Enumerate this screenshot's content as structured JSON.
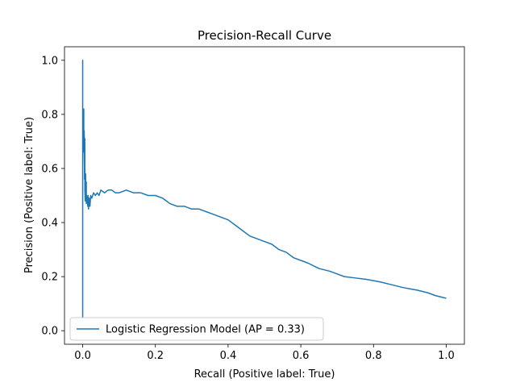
{
  "chart_data": {
    "type": "line",
    "title": "Precision-Recall Curve",
    "xlabel": "Recall (Positive label: True)",
    "ylabel": "Precision (Positive label: True)",
    "xlim": [
      -0.05,
      1.05
    ],
    "ylim": [
      -0.05,
      1.05
    ],
    "xticks": [
      0.0,
      0.2,
      0.4,
      0.6,
      0.8,
      1.0
    ],
    "xtick_labels": [
      "0.0",
      "0.2",
      "0.4",
      "0.6",
      "0.8",
      "1.0"
    ],
    "yticks": [
      0.0,
      0.2,
      0.4,
      0.6,
      0.8,
      1.0
    ],
    "ytick_labels": [
      "0.0",
      "0.2",
      "0.4",
      "0.6",
      "0.8",
      "1.0"
    ],
    "grid": false,
    "legend_position": "lower-left",
    "series": [
      {
        "name": "Logistic Regression Model (AP = 0.33)",
        "color": "#1f77b4",
        "x": [
          0.0,
          0.0,
          0.0,
          0.0,
          0.0,
          0.0,
          0.002,
          0.002,
          0.003,
          0.003,
          0.004,
          0.004,
          0.005,
          0.005,
          0.006,
          0.006,
          0.007,
          0.008,
          0.009,
          0.01,
          0.01,
          0.011,
          0.012,
          0.013,
          0.014,
          0.015,
          0.016,
          0.018,
          0.02,
          0.022,
          0.025,
          0.03,
          0.035,
          0.04,
          0.045,
          0.05,
          0.06,
          0.07,
          0.08,
          0.09,
          0.1,
          0.12,
          0.14,
          0.16,
          0.18,
          0.2,
          0.22,
          0.24,
          0.26,
          0.28,
          0.3,
          0.32,
          0.34,
          0.36,
          0.38,
          0.4,
          0.42,
          0.44,
          0.46,
          0.48,
          0.5,
          0.52,
          0.54,
          0.56,
          0.58,
          0.6,
          0.62,
          0.65,
          0.68,
          0.7,
          0.72,
          0.75,
          0.78,
          0.8,
          0.82,
          0.85,
          0.88,
          0.9,
          0.92,
          0.95,
          0.97,
          1.0
        ],
        "y": [
          0.05,
          0.33,
          0.2,
          1.0,
          0.1,
          0.6,
          0.78,
          0.7,
          0.82,
          0.72,
          0.66,
          0.74,
          0.69,
          0.56,
          0.71,
          0.52,
          0.48,
          0.58,
          0.51,
          0.55,
          0.47,
          0.5,
          0.49,
          0.48,
          0.46,
          0.5,
          0.45,
          0.49,
          0.46,
          0.5,
          0.49,
          0.51,
          0.5,
          0.51,
          0.5,
          0.52,
          0.51,
          0.52,
          0.52,
          0.51,
          0.51,
          0.52,
          0.51,
          0.51,
          0.5,
          0.5,
          0.49,
          0.47,
          0.46,
          0.46,
          0.45,
          0.45,
          0.44,
          0.43,
          0.42,
          0.41,
          0.39,
          0.37,
          0.35,
          0.34,
          0.33,
          0.32,
          0.3,
          0.29,
          0.27,
          0.26,
          0.25,
          0.23,
          0.22,
          0.21,
          0.2,
          0.195,
          0.19,
          0.185,
          0.18,
          0.17,
          0.16,
          0.155,
          0.15,
          0.14,
          0.13,
          0.12
        ]
      }
    ]
  }
}
